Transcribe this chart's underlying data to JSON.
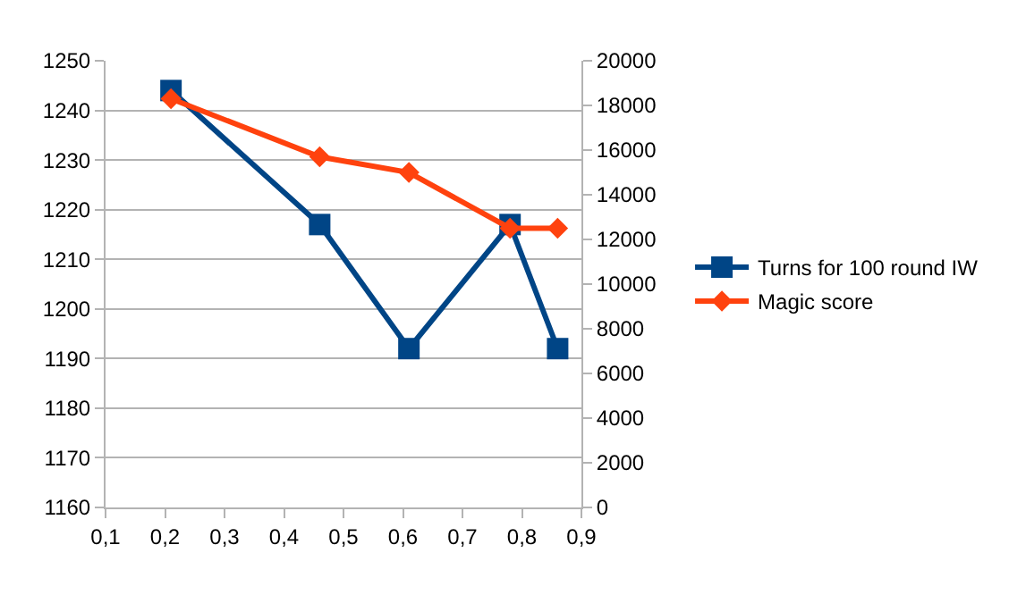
{
  "chart_data": {
    "type": "line",
    "x": [
      0.21,
      0.46,
      0.61,
      0.78,
      0.86
    ],
    "series": [
      {
        "name": "Turns for 100 round IW",
        "color": "#004586",
        "values": [
          1244,
          1217,
          1192,
          1217,
          1192
        ],
        "marker": "square"
      },
      {
        "name": "Magic score",
        "color": "#ff420e",
        "values": [
          18300,
          15700,
          15000,
          12500,
          12500
        ],
        "marker": "diamond",
        "axis": "y2"
      }
    ],
    "xlim": [
      0.1,
      0.9
    ],
    "xticks": [
      {
        "value": 0.1,
        "label": "0,1"
      },
      {
        "value": 0.2,
        "label": "0,2"
      },
      {
        "value": 0.3,
        "label": "0,3"
      },
      {
        "value": 0.4,
        "label": "0,4"
      },
      {
        "value": 0.5,
        "label": "0,5"
      },
      {
        "value": 0.6,
        "label": "0,6"
      },
      {
        "value": 0.7,
        "label": "0,7"
      },
      {
        "value": 0.8,
        "label": "0,8"
      },
      {
        "value": 0.9,
        "label": "0,9"
      }
    ],
    "ylim": [
      1160,
      1250
    ],
    "yticks": [
      1160,
      1170,
      1180,
      1190,
      1200,
      1210,
      1220,
      1230,
      1240,
      1250
    ],
    "y2lim": [
      0,
      20000
    ],
    "y2ticks": [
      0,
      2000,
      4000,
      6000,
      8000,
      10000,
      12000,
      14000,
      16000,
      18000,
      20000
    ],
    "grid": "y",
    "legend": "right",
    "line_style": "solid"
  }
}
